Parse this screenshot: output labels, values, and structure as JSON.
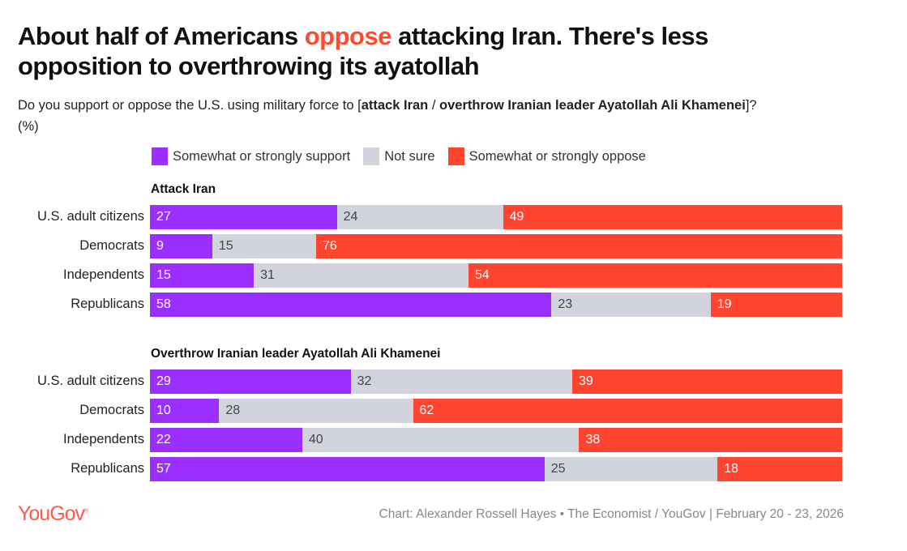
{
  "title": {
    "part1": "About half of Americans ",
    "highlight": "oppose",
    "part2": " attacking Iran. There's less opposition to overthrowing its ayatollah"
  },
  "subtitle": {
    "pre": "Do you support or oppose the U.S. using military force to [",
    "bold1": "attack Iran",
    "sep": " / ",
    "bold2": "overthrow Iranian leader Ayatollah Ali Khamenei",
    "post": "]? (%)"
  },
  "colors": {
    "support": "#9b2fff",
    "not_sure": "#d1d4dc",
    "oppose": "#ff4530"
  },
  "chart_data": {
    "type": "bar",
    "stacked": true,
    "orientation": "horizontal",
    "legend": [
      "Somewhat or strongly support",
      "Not sure",
      "Somewhat or strongly oppose"
    ],
    "groups": [
      {
        "title": "Attack Iran",
        "rows": [
          {
            "label": "U.S. adult citizens",
            "values": [
              27,
              24,
              49
            ]
          },
          {
            "label": "Democrats",
            "values": [
              9,
              15,
              76
            ]
          },
          {
            "label": "Independents",
            "values": [
              15,
              31,
              54
            ]
          },
          {
            "label": "Republicans",
            "values": [
              58,
              23,
              19
            ]
          }
        ]
      },
      {
        "title": "Overthrow Iranian leader Ayatollah Ali Khamenei",
        "rows": [
          {
            "label": "U.S. adult citizens",
            "values": [
              29,
              32,
              39
            ]
          },
          {
            "label": "Democrats",
            "values": [
              10,
              28,
              62
            ]
          },
          {
            "label": "Independents",
            "values": [
              22,
              40,
              38
            ]
          },
          {
            "label": "Republicans",
            "values": [
              57,
              25,
              18
            ]
          }
        ]
      }
    ],
    "xlim": [
      0,
      100
    ]
  },
  "footer": {
    "logo": "YouGov",
    "source": "Chart: Alexander Rossell Hayes • The Economist / YouGov | February 20 - 23, 2026"
  }
}
